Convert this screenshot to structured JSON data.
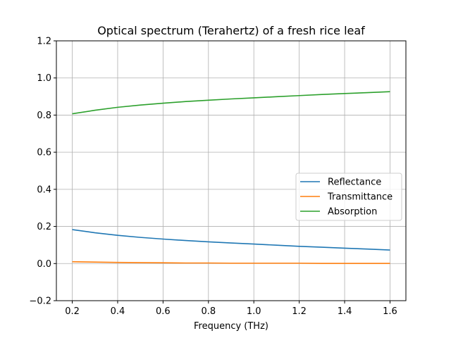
{
  "chart_data": {
    "type": "line",
    "title": "Optical spectrum (Terahertz) of a fresh rice leaf",
    "xlabel": "Frequency (THz)",
    "ylabel": "",
    "xlim": [
      0.13,
      1.67
    ],
    "ylim": [
      -0.2,
      1.2
    ],
    "x_ticks": [
      0.2,
      0.4,
      0.6,
      0.8,
      1.0,
      1.2,
      1.4,
      1.6
    ],
    "x_tick_labels": [
      "0.2",
      "0.4",
      "0.6",
      "0.8",
      "1.0",
      "1.2",
      "1.4",
      "1.6"
    ],
    "y_ticks": [
      -0.2,
      0.0,
      0.2,
      0.4,
      0.6,
      0.8,
      1.0,
      1.2
    ],
    "y_tick_labels": [
      "−0.2",
      "0.0",
      "0.2",
      "0.4",
      "0.6",
      "0.8",
      "1.0",
      "1.2"
    ],
    "grid": true,
    "legend_position": "center-right",
    "x": [
      0.2,
      0.3,
      0.4,
      0.5,
      0.6,
      0.7,
      0.8,
      0.9,
      1.0,
      1.1,
      1.2,
      1.3,
      1.4,
      1.5,
      1.6
    ],
    "series": [
      {
        "name": "Reflectance",
        "color": "#1f77b4",
        "values": [
          0.183,
          0.166,
          0.152,
          0.141,
          0.132,
          0.124,
          0.117,
          0.111,
          0.105,
          0.099,
          0.093,
          0.088,
          0.083,
          0.078,
          0.073
        ]
      },
      {
        "name": "Transmittance",
        "color": "#ff7f0e",
        "values": [
          0.01,
          0.008,
          0.006,
          0.005,
          0.004,
          0.003,
          0.003,
          0.002,
          0.002,
          0.002,
          0.002,
          0.001,
          0.001,
          0.001,
          0.001
        ]
      },
      {
        "name": "Absorption",
        "color": "#2ca02c",
        "values": [
          0.807,
          0.826,
          0.842,
          0.854,
          0.864,
          0.873,
          0.88,
          0.887,
          0.893,
          0.899,
          0.905,
          0.911,
          0.916,
          0.921,
          0.926
        ]
      }
    ]
  }
}
